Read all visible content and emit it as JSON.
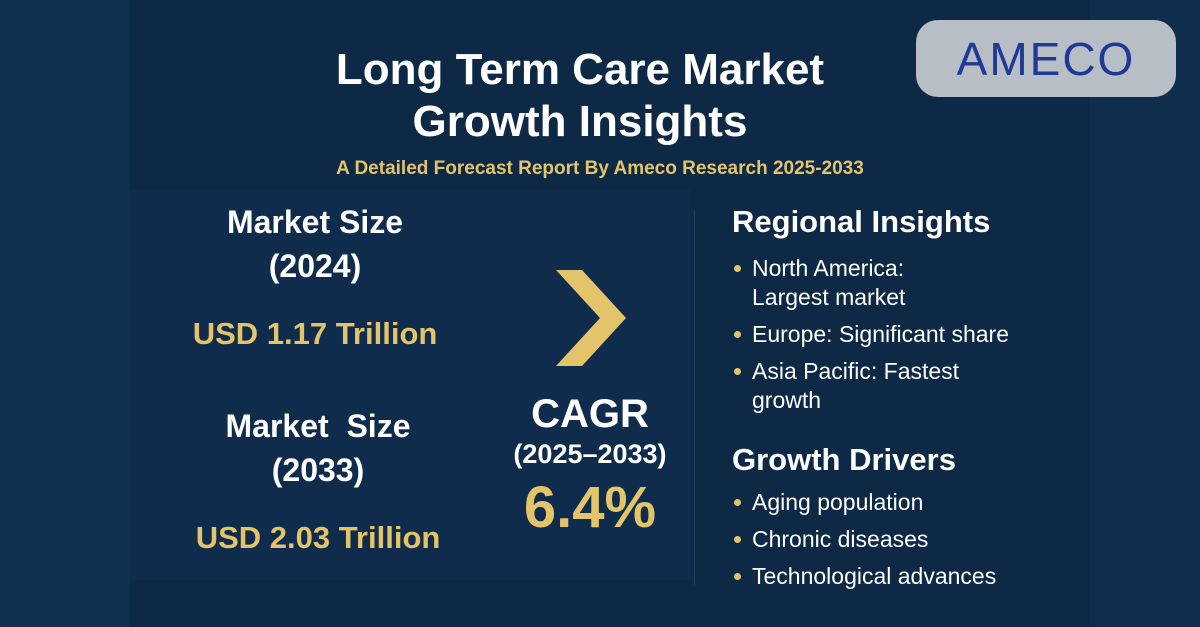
{
  "header": {
    "title_line1": "Long Term Care Market",
    "title_line2": "Growth Insights",
    "subtitle": "A Detailed Forecast Report By Ameco Research 2025-2033",
    "logo": "AMECO"
  },
  "market": {
    "size_2024_label": "Market Size",
    "size_2024_year": "(2024)",
    "size_2024_value": "USD 1.17 Trillion",
    "size_2033_label": "Market  Size",
    "size_2033_year": "(2033)",
    "size_2033_value": "USD 2.03 Trillion"
  },
  "cagr": {
    "label": "CAGR",
    "period": "(2025–2033)",
    "value": "6.4%"
  },
  "regional": {
    "heading": "Regional Insights",
    "items": [
      "North America: Largest market",
      "Europe: Significant share",
      "Asia Pacific: Fastest growth"
    ]
  },
  "drivers": {
    "heading": "Growth Drivers",
    "items": [
      "Aging population",
      "Chronic diseases",
      "Technological advances"
    ]
  },
  "colors": {
    "background": "#0d2946",
    "accent": "#e3c46a",
    "logo_bg": "#b7bec6",
    "logo_text": "#1e3a94"
  }
}
